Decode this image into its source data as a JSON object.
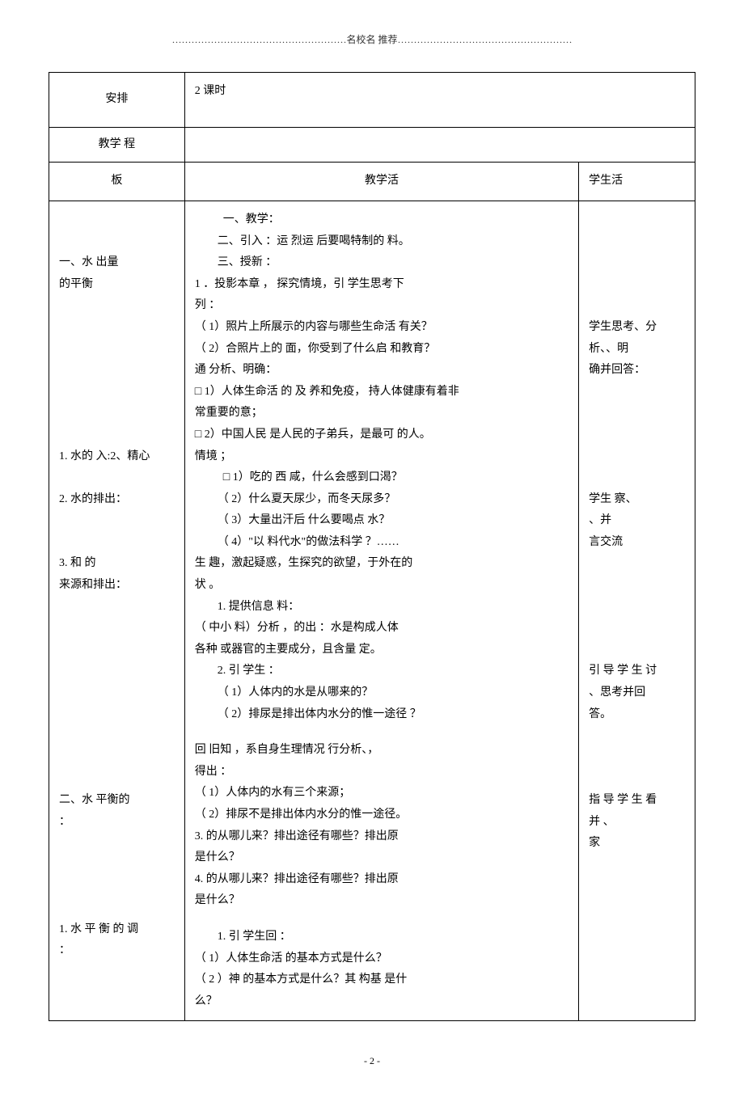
{
  "header": {
    "text": "………………………………………………名校名 推荐………………………………………………"
  },
  "table": {
    "arrange": {
      "label": "安排",
      "value": "2 课时"
    },
    "process": {
      "label": "教学 程"
    },
    "headers": {
      "col1": "板",
      "col2": "教学活",
      "col3": "学生活"
    },
    "body": {
      "left": {
        "l1": "一、水 出量",
        "l2": "的平衡",
        "l3": "1. 水的 入:2、精心",
        "l4": "2. 水的排出：",
        "l5": "3.  和 的",
        "l6": "来源和排出：",
        "l7": "二、水 平衡的",
        "l8": "：",
        "l9": "1. 水 平 衡 的 调",
        "l10": "："
      },
      "mid": {
        "m1": "一、教学：",
        "m2": "二、引入 ：运  烈运 后要喝特制的 料。",
        "m3": "三、授新 ：",
        "m4": "1  ．投影本章 ， 探究情境，引 学生思考下",
        "m5": "列 ：",
        "m6": "（ 1）照片上所展示的内容与哪些生命活 有关？",
        "m7": "（ 2）合照片上的 面，你受到了什么启 和教育？",
        "m8": "通 分析、明确：",
        "m9": "□ 1）人体生命活 的 及 养和免疫， 持人体健康有着非",
        "m10": "常重要的意；",
        "m11": "□ 2）中国人民 是人民的子弟兵，是最可 的人。",
        "m12": "情境 ；",
        "m13": "□ 1）吃的 西 咸，什么会感到口渴？",
        "m14": "（ 2）什么夏天尿少，而冬天尿多？",
        "m15": "（ 3）大量出汗后 什么要喝点 水？",
        "m16": "（ 4）\"以 料代水\"的做法科学 ？……",
        "m17": "生 趣，激起疑惑，生探究的欲望，于外在的",
        "m18": "状 。",
        "m19": "1. 提供信息 料：",
        "m20": "（ 中小 料）分析 ，的出 ：水是构成人体",
        "m21": "各种 或器官的主要成分，且含量 定。",
        "m22": "2. 引 学生 ：",
        "m23": "（ 1）人体内的水是从哪来的？",
        "m24": "（ 2）排尿是排出体内水分的惟一途径 ？",
        "m25": "回 旧知 ，系自身生理情况 行分析、，",
        "m26": "得出 ：",
        "m27": "（ 1）人体内的水有三个来源；",
        "m28": "（ 2）排尿不是排出体内水分的惟一途径。",
        "m29": "3.  的从哪儿来？排出途径有哪些？排出原",
        "m30": "是什么？",
        "m31": "4.  的从哪儿来？排出途径有哪些？排出原",
        "m32": "是什么？",
        "m33": "1. 引 学生回 ：",
        "m34": "（ 1）人体生命活  的基本方式是什么？",
        "m35": "（ 2 ）神  的基本方式是什么？其 构基 是什",
        "m36": "么？"
      },
      "right": {
        "r1": "学生思考、分",
        "r2": "析、、明",
        "r3": "确并回答：",
        "r4": "学生 察、",
        "r5": "、并",
        "r6": "言交流",
        "r7": "引 导 学 生 讨",
        "r8": "、思考并回",
        "r9": "答。",
        "r10": "指 导 学 生 看",
        "r11": "并 、",
        "r12": "家"
      }
    }
  },
  "footer": {
    "pageNumber": "- 2 -"
  }
}
